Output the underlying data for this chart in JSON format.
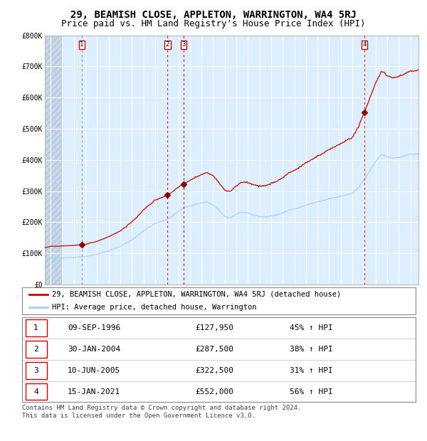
{
  "title": "29, BEAMISH CLOSE, APPLETON, WARRINGTON, WA4 5RJ",
  "subtitle": "Price paid vs. HM Land Registry's House Price Index (HPI)",
  "ylim": [
    0,
    800000
  ],
  "xlim_start": 1993.5,
  "xlim_end": 2025.7,
  "yticks": [
    0,
    100000,
    200000,
    300000,
    400000,
    500000,
    600000,
    700000,
    800000
  ],
  "ytick_labels": [
    "£0",
    "£100K",
    "£200K",
    "£300K",
    "£400K",
    "£500K",
    "£600K",
    "£700K",
    "£800K"
  ],
  "xticks": [
    1994,
    1995,
    1996,
    1997,
    1998,
    1999,
    2000,
    2001,
    2002,
    2003,
    2004,
    2005,
    2006,
    2007,
    2008,
    2009,
    2010,
    2011,
    2012,
    2013,
    2014,
    2015,
    2016,
    2017,
    2018,
    2019,
    2020,
    2021,
    2022,
    2023,
    2024,
    2025
  ],
  "red_color": "#cc0000",
  "hpi_line_color": "#aaccee",
  "sale_marker_color": "#880000",
  "sale_vline_color": "#cc2222",
  "background_color": "#ddeeff",
  "grid_color": "#ffffff",
  "sale_dates_decimal": [
    1996.69,
    2004.08,
    2005.44,
    2021.04
  ],
  "sale_prices": [
    127950,
    287500,
    322500,
    552000
  ],
  "sale_labels": [
    "1",
    "2",
    "3",
    "4"
  ],
  "legend_line1": "29, BEAMISH CLOSE, APPLETON, WARRINGTON, WA4 5RJ (detached house)",
  "legend_line2": "HPI: Average price, detached house, Warrington",
  "table_rows": [
    [
      "1",
      "09-SEP-1996",
      "£127,950",
      "45% ↑ HPI"
    ],
    [
      "2",
      "30-JAN-2004",
      "£287,500",
      "38% ↑ HPI"
    ],
    [
      "3",
      "10-JUN-2005",
      "£322,500",
      "31% ↑ HPI"
    ],
    [
      "4",
      "15-JAN-2021",
      "£552,000",
      "56% ↑ HPI"
    ]
  ],
  "footer_text": "Contains HM Land Registry data © Crown copyright and database right 2024.\nThis data is licensed under the Open Government Licence v3.0.",
  "title_fontsize": 10,
  "subtitle_fontsize": 9,
  "axis_fontsize": 7,
  "legend_fontsize": 7.5,
  "table_fontsize": 8,
  "footer_fontsize": 6.5
}
